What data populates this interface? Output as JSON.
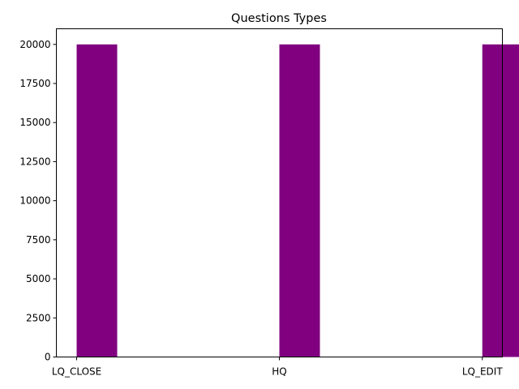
{
  "chart_data": {
    "type": "bar",
    "title": "Questions Types",
    "xlabel": "",
    "ylabel": "",
    "categories": [
      "LQ_CLOSE",
      "HQ",
      "LQ_EDIT"
    ],
    "values": [
      20000,
      20000,
      20000
    ],
    "bar_color": "#800080",
    "ylim": [
      0,
      21000
    ],
    "yticks": [
      0,
      2500,
      5000,
      7500,
      10000,
      12500,
      15000,
      17500,
      20000
    ],
    "grid": false,
    "legend": "none"
  }
}
